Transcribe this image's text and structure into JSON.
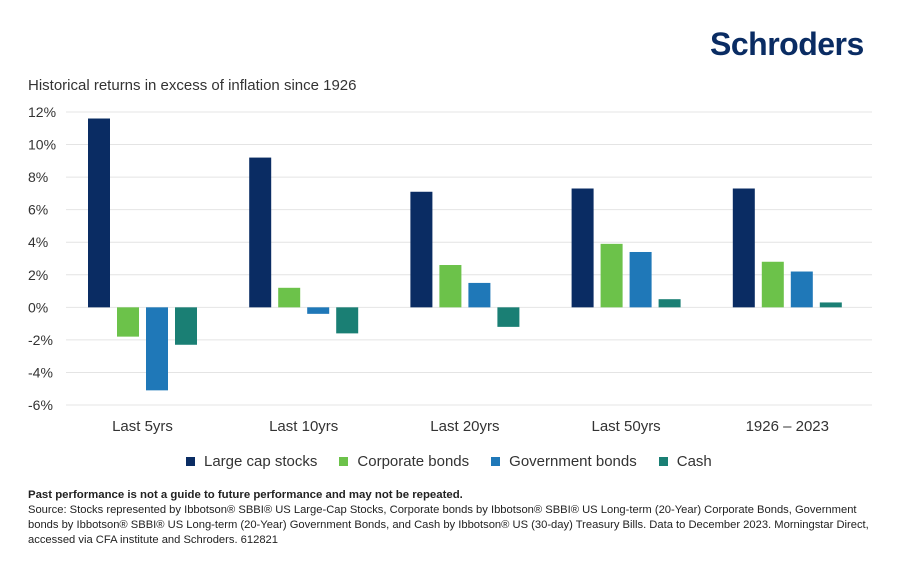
{
  "brand": {
    "name": "Schroders",
    "color": "#0a2c63"
  },
  "chart_data": {
    "type": "bar",
    "title": "Historical returns in excess of inflation since 1926",
    "categories": [
      "Last 5yrs",
      "Last 10yrs",
      "Last 20yrs",
      "Last 50yrs",
      "1926 – 2023"
    ],
    "series": [
      {
        "name": "Large cap stocks",
        "color": "#0a2c63",
        "values": [
          11.6,
          9.2,
          7.1,
          7.3,
          7.3
        ]
      },
      {
        "name": "Corporate bonds",
        "color": "#6cc24a",
        "values": [
          -1.8,
          1.2,
          2.6,
          3.9,
          2.8
        ]
      },
      {
        "name": "Government bonds",
        "color": "#1f78b8",
        "values": [
          -5.1,
          -0.4,
          1.5,
          3.4,
          2.2
        ]
      },
      {
        "name": "Cash",
        "color": "#1a7f74",
        "values": [
          -2.3,
          -1.6,
          -1.2,
          0.5,
          0.3
        ]
      }
    ],
    "yticks": [
      "12%",
      "10%",
      "8%",
      "6%",
      "4%",
      "2%",
      "0%",
      "-2%",
      "-4%",
      "-6%"
    ],
    "ytick_values": [
      12,
      10,
      8,
      6,
      4,
      2,
      0,
      -2,
      -4,
      -6
    ],
    "ylim": [
      -6,
      12
    ],
    "grid": true,
    "legend_position": "bottom"
  },
  "footnote": {
    "disclaimer": "Past performance is not a guide to future performance and may not be repeated.",
    "source": "Source: Stocks represented by Ibbotson® SBBI® US Large-Cap Stocks, Corporate bonds by Ibbotson® SBBI® US Long-term (20-Year) Corporate Bonds, Government bonds by Ibbotson® SBBI® US Long-term (20-Year) Government Bonds, and Cash by Ibbotson® US (30-day) Treasury Bills. Data to December 2023. Morningstar Direct, accessed via CFA institute and Schroders. 612821"
  }
}
